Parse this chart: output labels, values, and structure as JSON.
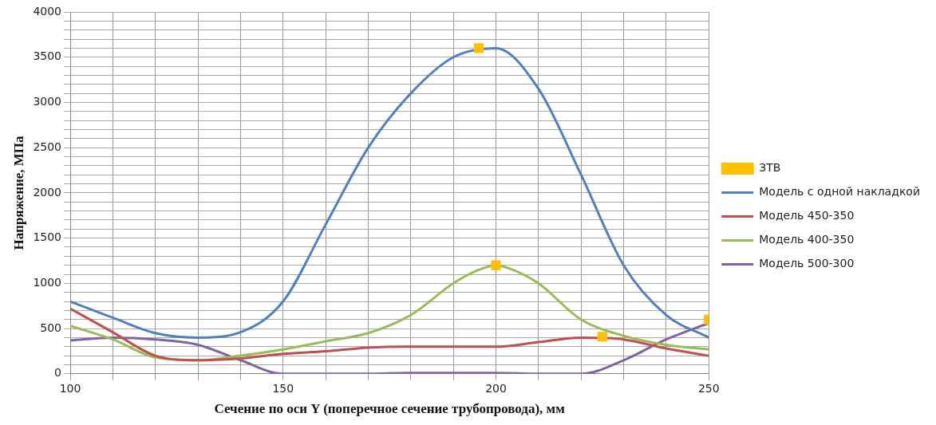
{
  "chart_data": {
    "type": "line",
    "xlabel": "Сечение по оси Y (поперечное сечение трубопровода), мм",
    "ylabel": "Напряжение, МПа",
    "xlim": [
      100,
      250
    ],
    "xticks": [
      100,
      {
        "value": 110,
        "label": null
      },
      {
        "value": 120,
        "label": null
      },
      {
        "value": 130,
        "label": null
      },
      {
        "value": 140,
        "label": null
      },
      150,
      {
        "value": 160,
        "label": null
      },
      {
        "value": 170,
        "label": null
      },
      {
        "value": 180,
        "label": null
      },
      {
        "value": 190,
        "label": null
      },
      200,
      {
        "value": 210,
        "label": null
      },
      {
        "value": 220,
        "label": null
      },
      {
        "value": 230,
        "label": null
      },
      {
        "value": 240,
        "label": null
      },
      250
    ],
    "ylim": [
      0,
      4000
    ],
    "yticks": [
      0,
      {
        "value": 100,
        "label": null
      },
      {
        "value": 200,
        "label": null
      },
      {
        "value": 300,
        "label": null
      },
      {
        "value": 400,
        "label": null
      },
      500,
      {
        "value": 600,
        "label": null
      },
      {
        "value": 700,
        "label": null
      },
      {
        "value": 800,
        "label": null
      },
      {
        "value": 900,
        "label": null
      },
      1000,
      {
        "value": 1100,
        "label": null
      },
      {
        "value": 1200,
        "label": null
      },
      {
        "value": 1300,
        "label": null
      },
      {
        "value": 1400,
        "label": null
      },
      1500,
      {
        "value": 1600,
        "label": null
      },
      {
        "value": 1700,
        "label": null
      },
      {
        "value": 1800,
        "label": null
      },
      {
        "value": 1900,
        "label": null
      },
      2000,
      {
        "value": 2100,
        "label": null
      },
      {
        "value": 2200,
        "label": null
      },
      {
        "value": 2300,
        "label": null
      },
      {
        "value": 2400,
        "label": null
      },
      2500,
      {
        "value": 2600,
        "label": null
      },
      {
        "value": 2700,
        "label": null
      },
      {
        "value": 2800,
        "label": null
      },
      {
        "value": 2900,
        "label": null
      },
      3000,
      {
        "value": 3100,
        "label": null
      },
      {
        "value": 3200,
        "label": null
      },
      {
        "value": 3300,
        "label": null
      },
      {
        "value": 3400,
        "label": null
      },
      3500,
      {
        "value": 3600,
        "label": null
      },
      {
        "value": 3700,
        "label": null
      },
      {
        "value": 3800,
        "label": null
      },
      {
        "value": 3900,
        "label": null
      },
      4000
    ],
    "grid": true,
    "legend": "right",
    "marker": "none",
    "line_style": "solid",
    "series": [
      {
        "name": "ЗТВ",
        "type": "scatter",
        "marker": "square",
        "color": "#ffc000",
        "x": [
          196,
          200,
          225,
          250
        ],
        "values": [
          3600,
          1200,
          410,
          600
        ]
      },
      {
        "name": "Модель с одной накладкой",
        "color": "#4f81bd",
        "x": [
          100,
          110,
          120,
          130,
          140,
          150,
          160,
          170,
          180,
          190,
          200,
          210,
          220,
          230,
          240,
          250
        ],
        "values": [
          800,
          620,
          450,
          400,
          460,
          800,
          1650,
          2500,
          3100,
          3500,
          3600,
          3150,
          2200,
          1200,
          650,
          400
        ]
      },
      {
        "name": "Модель 450-350",
        "color": "#c0504d",
        "x": [
          100,
          110,
          120,
          130,
          140,
          150,
          160,
          170,
          180,
          190,
          200,
          210,
          220,
          230,
          240,
          250
        ],
        "values": [
          720,
          460,
          200,
          150,
          170,
          220,
          250,
          290,
          300,
          300,
          300,
          350,
          400,
          380,
          280,
          200
        ]
      },
      {
        "name": "Модель 400-350",
        "color": "#9bbb59",
        "x": [
          100,
          110,
          120,
          130,
          140,
          150,
          160,
          170,
          180,
          190,
          195,
          200,
          205,
          210,
          220,
          230,
          240,
          250
        ],
        "values": [
          530,
          380,
          180,
          150,
          200,
          270,
          360,
          450,
          650,
          1000,
          1130,
          1200,
          1130,
          1000,
          600,
          420,
          320,
          270
        ]
      },
      {
        "name": "Модель 500-300",
        "color": "#8064a2",
        "x": [
          100,
          110,
          120,
          130,
          140,
          150,
          160,
          170,
          180,
          190,
          200,
          210,
          220,
          230,
          240,
          250
        ],
        "values": [
          370,
          400,
          380,
          320,
          150,
          0,
          0,
          0,
          10,
          10,
          10,
          0,
          0,
          150,
          380,
          560
        ]
      }
    ]
  }
}
